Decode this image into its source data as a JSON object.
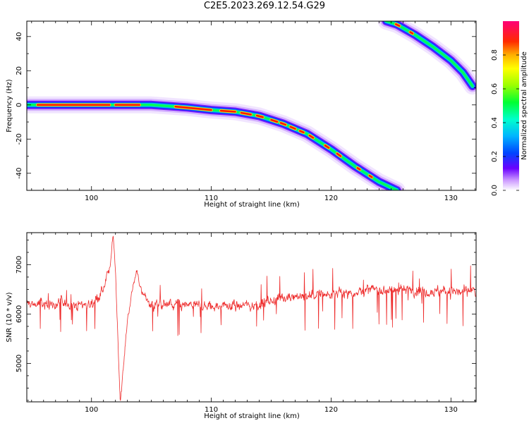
{
  "title": "C2E5.2023.269.12.54.G29",
  "chart_data": [
    {
      "type": "heatmap",
      "xlabel": "Height of straight line (km)",
      "ylabel": "Frequency (Hz)",
      "xlim": [
        94.6,
        132.1
      ],
      "ylim": [
        -50,
        49
      ],
      "xticks": [
        100,
        110,
        120,
        130
      ],
      "yticks": [
        40,
        20,
        0,
        -20,
        -40
      ],
      "colorbar": {
        "label": "Normalized spectral amplitude",
        "range": [
          0,
          1
        ],
        "ticks": [
          0.0,
          0.2,
          0.4,
          0.6,
          0.8
        ]
      },
      "ridges": [
        {
          "points": [
            [
              94.6,
              0
            ],
            [
              100,
              0
            ],
            [
              105,
              0
            ],
            [
              108,
              -1.5
            ],
            [
              110,
              -3
            ],
            [
              112,
              -4
            ],
            [
              114,
              -6.5
            ],
            [
              116,
              -11
            ],
            [
              118,
              -17
            ],
            [
              120,
              -26
            ],
            [
              122,
              -36
            ],
            [
              124,
              -45
            ],
            [
              125.5,
              -50
            ]
          ],
          "peak_segments": [
            [
              95.5,
              101.5
            ],
            [
              102,
              104
            ],
            [
              107,
              110
            ],
            [
              110.8,
              112
            ],
            [
              112.5,
              113.3
            ],
            [
              113.8,
              114.3
            ],
            [
              115,
              115.5
            ],
            [
              115.8,
              116.2
            ],
            [
              116.6,
              117
            ],
            [
              117.4,
              117.7
            ],
            [
              118.2,
              118.5
            ],
            [
              119.5,
              119.8
            ],
            [
              120.5,
              120.8
            ],
            [
              122.2,
              122.4
            ],
            [
              123.2,
              123.4
            ]
          ]
        },
        {
          "points": [
            [
              124.6,
              49
            ],
            [
              125.5,
              47
            ],
            [
              127,
              41
            ],
            [
              128.5,
              34
            ],
            [
              130,
              26
            ],
            [
              131,
              19
            ],
            [
              131.8,
              11
            ]
          ],
          "peak_segments": [
            [
              125.4,
              125.7
            ],
            [
              126.6,
              126.8
            ]
          ]
        }
      ]
    },
    {
      "type": "line",
      "xlabel": "Height of straight line (km)",
      "ylabel": "SNR (10 * v/v)",
      "xlim": [
        94.6,
        132.1
      ],
      "ylim": [
        4220,
        7650
      ],
      "xticks": [
        100,
        110,
        120,
        130
      ],
      "yticks": [
        7000,
        6000,
        5000
      ],
      "series": [
        {
          "color": "#ee2b2b",
          "baseline": [
            [
              94.6,
              6200
            ],
            [
              100,
              6200
            ],
            [
              101,
              6500
            ],
            [
              101.6,
              7000
            ],
            [
              101.8,
              7650
            ],
            [
              102,
              6900
            ],
            [
              102.2,
              5500
            ],
            [
              102.4,
              4230
            ],
            [
              102.7,
              5000
            ],
            [
              103,
              5900
            ],
            [
              103.5,
              6600
            ],
            [
              103.8,
              6900
            ],
            [
              104.2,
              6400
            ],
            [
              105,
              6200
            ],
            [
              110,
              6150
            ],
            [
              114,
              6200
            ],
            [
              116,
              6350
            ],
            [
              120,
              6400
            ],
            [
              124,
              6500
            ],
            [
              132.1,
              6450
            ]
          ],
          "noise_amplitude": 150
        }
      ]
    }
  ]
}
